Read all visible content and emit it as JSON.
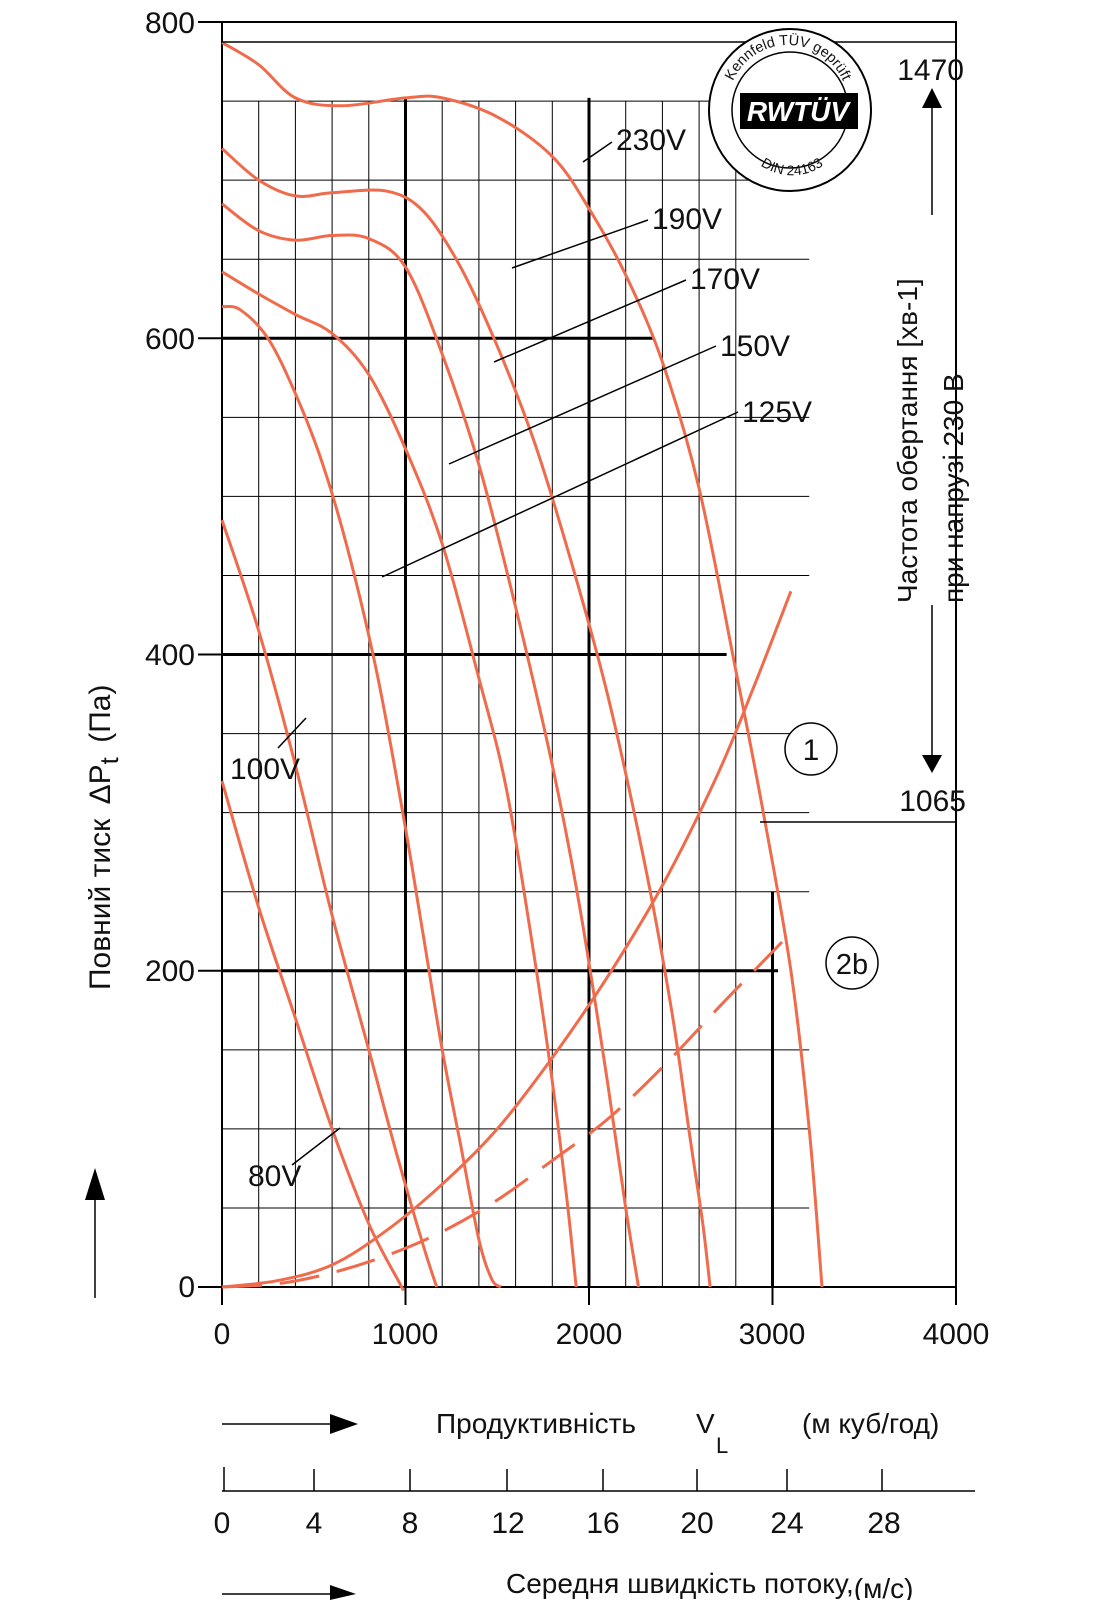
{
  "chart_data": {
    "type": "line",
    "title": "",
    "xlabel": "Продуктивність",
    "xlabel_symbol": "V",
    "xlabel_subscript": "L",
    "xlabel_unit": "(м куб/год)",
    "ylabel": "Повний тиск",
    "ylabel_symbol": "ΔP",
    "ylabel_subscript": "t",
    "ylabel_unit": "(Па)",
    "xlim": [
      0,
      4000
    ],
    "ylim": [
      0,
      800
    ],
    "x_ticks": [
      "0",
      "1000",
      "2000",
      "3000",
      "4000"
    ],
    "y_ticks": [
      "0",
      "200",
      "400",
      "600",
      "800"
    ],
    "grid": true,
    "series": [
      {
        "name": "230V",
        "x": [
          0,
          200,
          400,
          650,
          1000,
          1200,
          1500,
          1800,
          2000,
          2200,
          2400,
          2600,
          2800,
          2950,
          3100,
          3200,
          3270
        ],
        "y": [
          787,
          773,
          752,
          747,
          752,
          752,
          740,
          715,
          682,
          640,
          585,
          505,
          390,
          300,
          200,
          100,
          0
        ]
      },
      {
        "name": "190V",
        "x": [
          0,
          200,
          400,
          600,
          900,
          1100,
          1300,
          1500,
          1700,
          1900,
          2100,
          2300,
          2450,
          2550,
          2620,
          2660
        ],
        "y": [
          720,
          700,
          690,
          692,
          693,
          680,
          645,
          595,
          535,
          460,
          375,
          270,
          175,
          95,
          40,
          0
        ]
      },
      {
        "name": "170V",
        "x": [
          0,
          200,
          400,
          600,
          800,
          1000,
          1200,
          1400,
          1600,
          1800,
          1950,
          2100,
          2200,
          2270
        ],
        "y": [
          685,
          668,
          662,
          665,
          663,
          645,
          590,
          520,
          430,
          330,
          240,
          130,
          50,
          0
        ]
      },
      {
        "name": "150V",
        "x": [
          0,
          200,
          400,
          600,
          800,
          1000,
          1200,
          1400,
          1550,
          1700,
          1800,
          1880,
          1930
        ],
        "y": [
          642,
          628,
          615,
          603,
          577,
          530,
          470,
          385,
          315,
          210,
          130,
          55,
          0
        ]
      },
      {
        "name": "125V",
        "x": [
          0,
          100,
          250,
          400,
          550,
          700,
          850,
          1000,
          1100,
          1200,
          1300,
          1400,
          1470,
          1520
        ],
        "y": [
          620,
          618,
          600,
          565,
          520,
          460,
          385,
          290,
          220,
          150,
          90,
          30,
          5,
          0
        ]
      },
      {
        "name": "100V",
        "x": [
          0,
          200,
          400,
          600,
          800,
          950,
          1100,
          1170
        ],
        "y": [
          485,
          415,
          330,
          235,
          150,
          85,
          25,
          0
        ]
      },
      {
        "name": "80V",
        "x": [
          0,
          200,
          400,
          600,
          800,
          970,
          980
        ],
        "y": [
          320,
          240,
          170,
          100,
          40,
          2,
          0
        ]
      },
      {
        "name": "1",
        "x": [
          0,
          300,
          600,
          900,
          1200,
          1500,
          1800,
          2100,
          2400,
          2700,
          2900,
          3100
        ],
        "y": [
          0,
          4,
          14,
          36,
          65,
          100,
          145,
          196,
          254,
          324,
          380,
          440
        ]
      },
      {
        "name": "2b",
        "x": [
          0,
          300,
          600,
          900,
          1200,
          1500,
          1800,
          2100,
          2400,
          2700,
          2900,
          3100
        ],
        "y": [
          0,
          2,
          9,
          20,
          35,
          55,
          80,
          106,
          139,
          176,
          200,
          224
        ]
      }
    ],
    "annotations": {
      "rpm_top": "1470",
      "rpm_bottom": "1065",
      "rpm_label_line1": "Частота  обертання [хв-1]",
      "rpm_label_line2": "при напрузі 230 В",
      "curve1_label": "1",
      "curve2b_label": "2b"
    },
    "velocity_axis": {
      "ticks": [
        "0",
        "4",
        "8",
        "12",
        "16",
        "20",
        "24",
        "28"
      ],
      "label": "Середня швидкість потоку,",
      "unit": "(м/с)"
    }
  },
  "logo": {
    "arc_text_top": "Kennfeld TÜV geprüft",
    "brand": "RWTÜV",
    "arc_text_bottom": "DIN 24163"
  },
  "colors": {
    "curve": "#EF6B4C",
    "grid": "#000000",
    "text": "#111111"
  }
}
